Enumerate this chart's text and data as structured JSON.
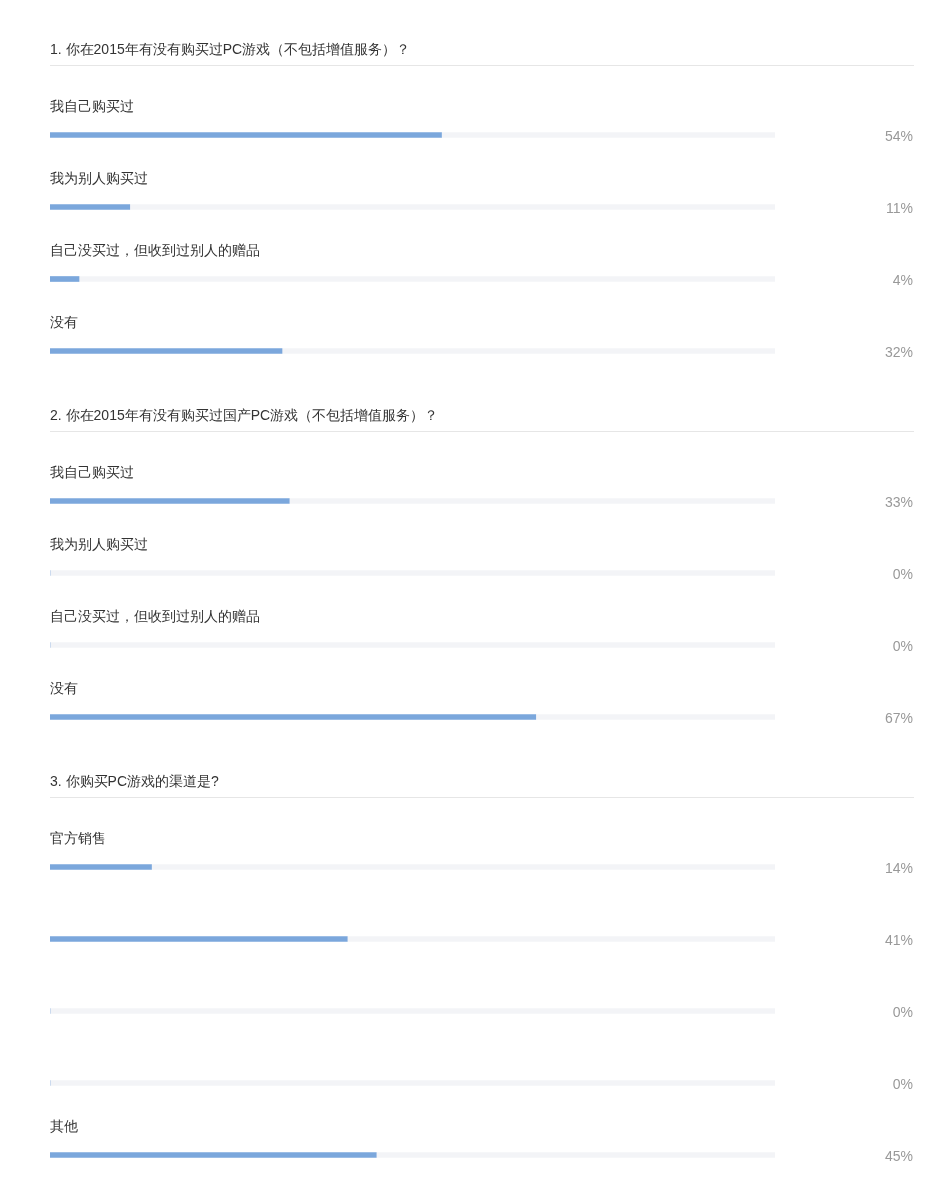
{
  "chart_data": [
    {
      "type": "bar",
      "orientation": "horizontal",
      "stacked": true,
      "title": "1. 你在2015年有没有购买过PC游戏（不包括增值服务）？",
      "categories": [
        "我自己购买过",
        "我为别人购买过",
        "自己没买过，但收到过别人的赠品",
        "没有"
      ],
      "series": [
        {
          "color": "#7ba7dc",
          "values": [
            54,
            11,
            4,
            32
          ],
          "value_labels": [
            "54%",
            "11%",
            "4%",
            "32%"
          ]
        },
        {
          "color": "#f3f4f7",
          "values": [
            46,
            89,
            96,
            68
          ]
        }
      ],
      "xlim": [
        0,
        100
      ],
      "tick_labels": "y"
    },
    {
      "type": "bar",
      "orientation": "horizontal",
      "stacked": true,
      "title": "2. 你在2015年有没有购买过国产PC游戏（不包括增值服务）？",
      "categories": [
        "我自己购买过",
        "我为别人购买过",
        "自己没买过，但收到过别人的赠品",
        "没有"
      ],
      "series": [
        {
          "color": "#7ba7dc",
          "values": [
            33,
            0,
            0,
            67
          ],
          "value_labels": [
            "33%",
            "0%",
            "0%",
            "67%"
          ]
        },
        {
          "color": "#f3f4f7",
          "values": [
            67,
            100,
            100,
            33
          ]
        }
      ],
      "xlim": [
        0,
        100
      ],
      "tick_labels": "y"
    },
    {
      "type": "bar",
      "orientation": "horizontal",
      "stacked": true,
      "title": "3. 你购买PC游戏的渠道是?",
      "categories": [
        "官方销售",
        null,
        null,
        null,
        "其他"
      ],
      "series": [
        {
          "color": "#7ba7dc",
          "values": [
            14,
            41,
            0,
            0,
            45
          ],
          "value_labels": [
            "14%",
            "41%",
            "0%",
            "0%",
            "45%"
          ]
        },
        {
          "color": "#f3f4f7",
          "values": [
            86,
            59,
            100,
            100,
            55
          ]
        }
      ],
      "xlim": [
        0,
        100
      ],
      "tick_labels": "y"
    }
  ]
}
